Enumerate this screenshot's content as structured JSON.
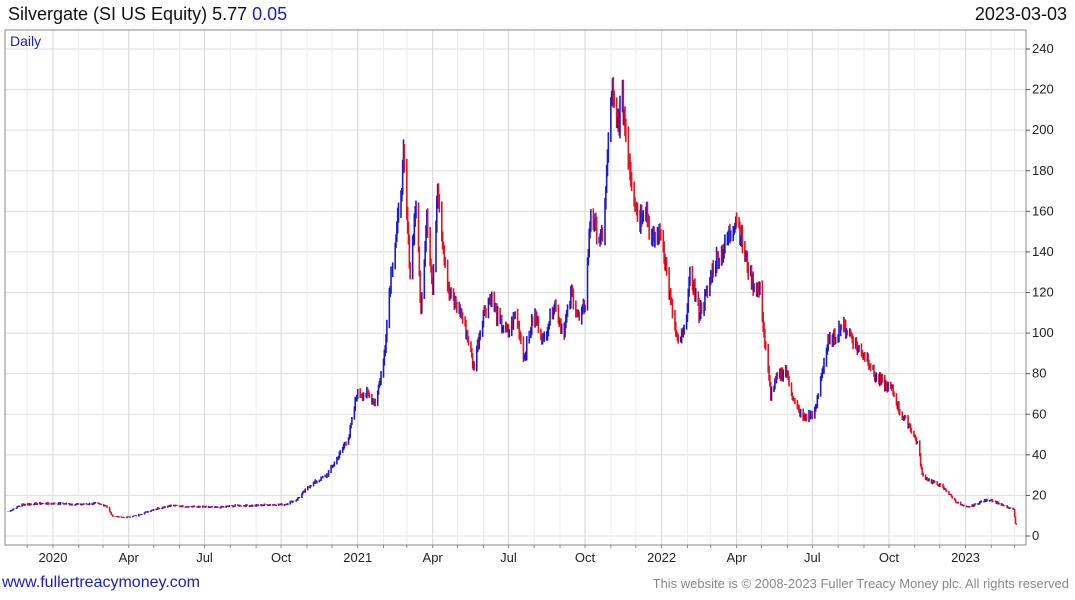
{
  "header": {
    "name": "Silvergate (SI US Equity)",
    "price": "5.77",
    "change": "0.05",
    "date": "2023-03-03"
  },
  "footer": {
    "site": "www.fullertreacymoney.com",
    "copyright": "This website is © 2008-2023 Fuller Treacy Money plc. All rights reserved"
  },
  "chart_data": {
    "type": "line",
    "title": "Silvergate (SI US Equity) 5.77 0.05",
    "frequency_label": "Daily",
    "xlabel": "",
    "ylabel": "",
    "ylim": [
      0,
      245
    ],
    "xlim": [
      "2019-11-08",
      "2023-03-05"
    ],
    "y_ticks": [
      0,
      20,
      40,
      60,
      80,
      100,
      120,
      140,
      160,
      180,
      200,
      220,
      240
    ],
    "x_ticks": [
      {
        "date": "2020-01-01",
        "label": "2020"
      },
      {
        "date": "2020-04-01",
        "label": "Apr"
      },
      {
        "date": "2020-07-01",
        "label": "Jul"
      },
      {
        "date": "2020-10-01",
        "label": "Oct"
      },
      {
        "date": "2021-01-01",
        "label": "2021"
      },
      {
        "date": "2021-04-01",
        "label": "Apr"
      },
      {
        "date": "2021-07-01",
        "label": "Jul"
      },
      {
        "date": "2021-10-01",
        "label": "Oct"
      },
      {
        "date": "2022-01-01",
        "label": "2022"
      },
      {
        "date": "2022-04-01",
        "label": "Apr"
      },
      {
        "date": "2022-07-01",
        "label": "Jul"
      },
      {
        "date": "2022-10-01",
        "label": "Oct"
      },
      {
        "date": "2023-01-01",
        "label": "2023"
      }
    ],
    "grid": true,
    "y_axis_side": "right",
    "up_color": "#1a1ad0",
    "down_color": "#e8101a",
    "series": [
      {
        "points": [
          [
            "2019-11-08",
            12
          ],
          [
            "2019-11-25",
            15.5
          ],
          [
            "2019-12-15",
            16
          ],
          [
            "2020-01-10",
            16
          ],
          [
            "2020-02-01",
            15.5
          ],
          [
            "2020-02-20",
            16
          ],
          [
            "2020-03-05",
            15
          ],
          [
            "2020-03-12",
            10
          ],
          [
            "2020-03-25",
            9
          ],
          [
            "2020-04-10",
            10
          ],
          [
            "2020-04-30",
            13
          ],
          [
            "2020-05-20",
            15
          ],
          [
            "2020-06-15",
            14.5
          ],
          [
            "2020-07-15",
            14
          ],
          [
            "2020-08-10",
            15
          ],
          [
            "2020-09-01",
            15
          ],
          [
            "2020-09-20",
            15.5
          ],
          [
            "2020-10-05",
            15.5
          ],
          [
            "2020-10-20",
            18
          ],
          [
            "2020-11-05",
            25
          ],
          [
            "2020-11-25",
            30
          ],
          [
            "2020-12-10",
            40
          ],
          [
            "2020-12-22",
            50
          ],
          [
            "2020-12-31",
            70
          ],
          [
            "2021-01-12",
            70
          ],
          [
            "2021-01-22",
            66
          ],
          [
            "2021-02-01",
            85
          ],
          [
            "2021-02-10",
            130
          ],
          [
            "2021-02-20",
            160
          ],
          [
            "2021-02-25",
            185
          ],
          [
            "2021-03-05",
            130
          ],
          [
            "2021-03-12",
            165
          ],
          [
            "2021-03-18",
            110
          ],
          [
            "2021-03-25",
            160
          ],
          [
            "2021-04-01",
            120
          ],
          [
            "2021-04-07",
            175
          ],
          [
            "2021-04-12",
            150
          ],
          [
            "2021-04-20",
            120
          ],
          [
            "2021-05-05",
            110
          ],
          [
            "2021-05-15",
            95
          ],
          [
            "2021-05-20",
            83
          ],
          [
            "2021-06-01",
            110
          ],
          [
            "2021-06-10",
            118
          ],
          [
            "2021-06-20",
            105
          ],
          [
            "2021-07-01",
            100
          ],
          [
            "2021-07-10",
            110
          ],
          [
            "2021-07-20",
            88
          ],
          [
            "2021-08-01",
            110
          ],
          [
            "2021-08-12",
            96
          ],
          [
            "2021-08-25",
            115
          ],
          [
            "2021-09-05",
            100
          ],
          [
            "2021-09-15",
            120
          ],
          [
            "2021-09-25",
            105
          ],
          [
            "2021-10-01",
            115
          ],
          [
            "2021-10-08",
            160
          ],
          [
            "2021-10-15",
            150
          ],
          [
            "2021-10-22",
            145
          ],
          [
            "2021-11-02",
            220
          ],
          [
            "2021-11-08",
            200
          ],
          [
            "2021-11-15",
            215
          ],
          [
            "2021-11-20",
            195
          ],
          [
            "2021-11-28",
            170
          ],
          [
            "2021-12-05",
            155
          ],
          [
            "2021-12-12",
            165
          ],
          [
            "2021-12-20",
            145
          ],
          [
            "2022-01-01",
            150
          ],
          [
            "2022-01-10",
            120
          ],
          [
            "2022-01-20",
            95
          ],
          [
            "2022-01-28",
            100
          ],
          [
            "2022-02-05",
            130
          ],
          [
            "2022-02-15",
            110
          ],
          [
            "2022-02-25",
            120
          ],
          [
            "2022-03-05",
            135
          ],
          [
            "2022-03-15",
            140
          ],
          [
            "2022-03-25",
            150
          ],
          [
            "2022-04-01",
            158
          ],
          [
            "2022-04-10",
            140
          ],
          [
            "2022-04-20",
            125
          ],
          [
            "2022-04-30",
            120
          ],
          [
            "2022-05-05",
            95
          ],
          [
            "2022-05-12",
            70
          ],
          [
            "2022-05-20",
            78
          ],
          [
            "2022-05-30",
            82
          ],
          [
            "2022-06-10",
            65
          ],
          [
            "2022-06-20",
            58
          ],
          [
            "2022-06-30",
            60
          ],
          [
            "2022-07-05",
            62
          ],
          [
            "2022-07-12",
            80
          ],
          [
            "2022-07-20",
            95
          ],
          [
            "2022-07-28",
            98
          ],
          [
            "2022-08-05",
            104
          ],
          [
            "2022-08-15",
            100
          ],
          [
            "2022-08-25",
            92
          ],
          [
            "2022-09-05",
            88
          ],
          [
            "2022-09-15",
            78
          ],
          [
            "2022-09-25",
            75
          ],
          [
            "2022-10-05",
            72
          ],
          [
            "2022-10-15",
            60
          ],
          [
            "2022-10-25",
            55
          ],
          [
            "2022-11-05",
            45
          ],
          [
            "2022-11-10",
            30
          ],
          [
            "2022-11-20",
            27
          ],
          [
            "2022-12-01",
            25
          ],
          [
            "2022-12-10",
            22
          ],
          [
            "2022-12-20",
            17
          ],
          [
            "2023-01-01",
            14
          ],
          [
            "2023-01-10",
            15
          ],
          [
            "2023-01-20",
            17
          ],
          [
            "2023-01-31",
            18
          ],
          [
            "2023-02-10",
            16
          ],
          [
            "2023-02-20",
            14
          ],
          [
            "2023-02-28",
            13
          ],
          [
            "2023-03-02",
            6
          ],
          [
            "2023-03-03",
            5.77
          ]
        ]
      }
    ]
  }
}
